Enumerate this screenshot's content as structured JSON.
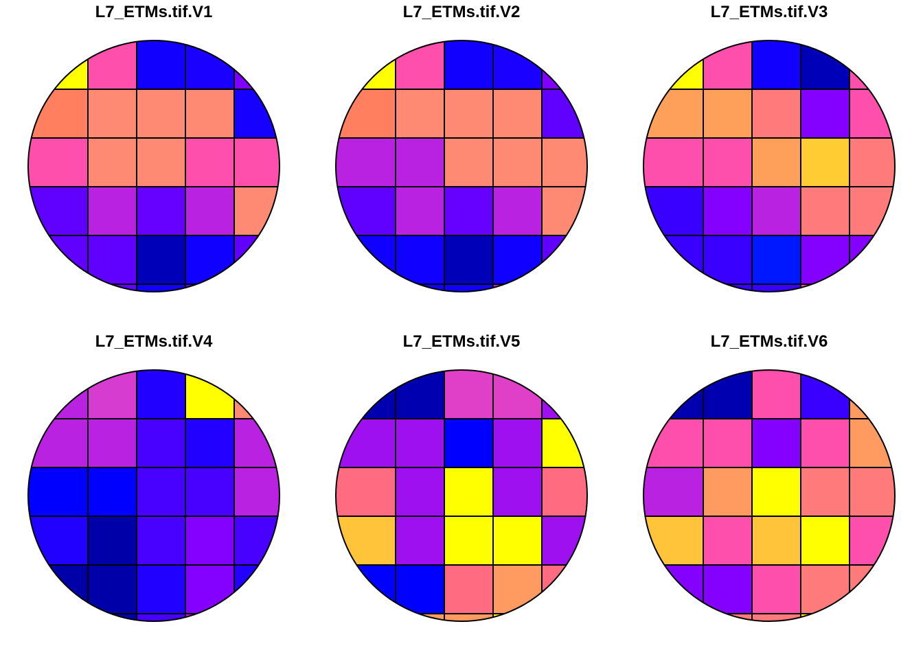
{
  "chart_data": [
    {
      "type": "heatmap",
      "title": "L7_ETMs.tif.V1",
      "grid": [
        [
          "#ffff00",
          "#ff4fad",
          "#1200ff",
          "#1a00ff",
          "#8000ff",
          "#8000ff"
        ],
        [
          "#ff7f5f",
          "#ff8a73",
          "#ff8a73",
          "#ff8a73",
          "#1600ff",
          "#6000ff"
        ],
        [
          "#ff4fad",
          "#ff8a73",
          "#ff8a73",
          "#ff4fad",
          "#ff4fad",
          "#b822e0"
        ],
        [
          "#6000ff",
          "#b822e0",
          "#6600ff",
          "#b822e0",
          "#ff8a73",
          "#ff4fad"
        ],
        [
          "#6000ff",
          "#6000ff",
          "#0000b8",
          "#1000ff",
          "#6000ff",
          "#ff8a73"
        ],
        [
          "#6000ff",
          "#6000ff",
          "#1000ff",
          "#6000ff",
          "#6000ff",
          "#ff8a73"
        ]
      ]
    },
    {
      "type": "heatmap",
      "title": "L7_ETMs.tif.V2",
      "grid": [
        [
          "#ffff00",
          "#ff4fad",
          "#1200ff",
          "#1a00ff",
          "#8000ff",
          "#8000ff"
        ],
        [
          "#ff7f5f",
          "#ff8a73",
          "#ff8a73",
          "#ff8a73",
          "#6000ff",
          "#b822e0"
        ],
        [
          "#b822e0",
          "#b822e0",
          "#ff8a73",
          "#ff8a73",
          "#ff8a73",
          "#6600ff"
        ],
        [
          "#6000ff",
          "#b822e0",
          "#6600ff",
          "#b822e0",
          "#ff8a73",
          "#ff4fad"
        ],
        [
          "#1000ff",
          "#1000ff",
          "#0000b8",
          "#1000ff",
          "#6000ff",
          "#ff4fad"
        ],
        [
          "#1000ff",
          "#1000ff",
          "#1000ff",
          "#b822e0",
          "#6000ff",
          "#ff4fad"
        ]
      ]
    },
    {
      "type": "heatmap",
      "title": "L7_ETMs.tif.V3",
      "grid": [
        [
          "#ffff00",
          "#ff4fad",
          "#1200ff",
          "#0000b8",
          "#ff4fad",
          "#ff4fad"
        ],
        [
          "#ffa05a",
          "#ffa05a",
          "#ff7a7a",
          "#8400ff",
          "#ff4fad",
          "#ff4fad"
        ],
        [
          "#ff4fad",
          "#ff4fad",
          "#ffa05a",
          "#ffcc33",
          "#ff7a7a",
          "#b822e0"
        ],
        [
          "#3a00ff",
          "#8400ff",
          "#b822e0",
          "#ff7a7a",
          "#ff7a7a",
          "#ff7a7a"
        ],
        [
          "#3a00ff",
          "#3a00ff",
          "#0018ff",
          "#8400ff",
          "#8400ff",
          "#ff4fad"
        ],
        [
          "#3a00ff",
          "#3a00ff",
          "#3a00ff",
          "#ff4fad",
          "#8400ff",
          "#ff4fad"
        ]
      ]
    },
    {
      "type": "heatmap",
      "title": "L7_ETMs.tif.V4",
      "grid": [
        [
          "#b822e0",
          "#d63cd0",
          "#2200ff",
          "#ffff00",
          "#ff8a73",
          "#ff8a73"
        ],
        [
          "#b822e0",
          "#b822e0",
          "#4800ff",
          "#2200ff",
          "#b822e0",
          "#ff8a73"
        ],
        [
          "#0000ff",
          "#0000ff",
          "#4800ff",
          "#4800ff",
          "#b822e0",
          "#8400ff"
        ],
        [
          "#2200ff",
          "#0000a8",
          "#4800ff",
          "#8400ff",
          "#4800ff",
          "#4800ff"
        ],
        [
          "#0000a8",
          "#0000a8",
          "#2200ff",
          "#8400ff",
          "#2200ff",
          "#2200ff"
        ],
        [
          "#0000a8",
          "#0000a8",
          "#4800ff",
          "#b822e0",
          "#4800ff",
          "#2200ff"
        ]
      ]
    },
    {
      "type": "heatmap",
      "title": "L7_ETMs.tif.V5",
      "grid": [
        [
          "#0000b0",
          "#0000b0",
          "#e040c8",
          "#e040c8",
          "#9e10f0",
          "#9e10f0"
        ],
        [
          "#9e10f0",
          "#9e10f0",
          "#0000ff",
          "#9e10f0",
          "#ffff00",
          "#ffc43a"
        ],
        [
          "#ff6b80",
          "#9e10f0",
          "#ffff00",
          "#9e10f0",
          "#ff6b80",
          "#ffc43a"
        ],
        [
          "#ffc43a",
          "#9e10f0",
          "#ffff00",
          "#ffff00",
          "#9e10f0",
          "#ff6b80"
        ],
        [
          "#0000ff",
          "#0000ff",
          "#ff6b80",
          "#ff9a60",
          "#ff6b80",
          "#9e10f0"
        ],
        [
          "#0000ff",
          "#ff9a60",
          "#ff9a60",
          "#ffff00",
          "#ff9a60",
          "#9e10f0"
        ]
      ]
    },
    {
      "type": "heatmap",
      "title": "L7_ETMs.tif.V6",
      "grid": [
        [
          "#0000b0",
          "#0000b0",
          "#ff4fad",
          "#3a00ff",
          "#ff9a60",
          "#ff9a60"
        ],
        [
          "#ff4fad",
          "#ff4fad",
          "#8400ff",
          "#ff4fad",
          "#ff9a60",
          "#ff9a60"
        ],
        [
          "#b822e0",
          "#ff9a60",
          "#ffff00",
          "#ff7a7a",
          "#ff7a7a",
          "#ff9a60"
        ],
        [
          "#ffc43a",
          "#ff4fad",
          "#ffc43a",
          "#ffff00",
          "#ff4fad",
          "#ff7a7a"
        ],
        [
          "#8400ff",
          "#8400ff",
          "#ff4fad",
          "#ff7a7a",
          "#ff7a7a",
          "#b822e0"
        ],
        [
          "#8400ff",
          "#ff7a7a",
          "#ff7a7a",
          "#ffff00",
          "#ff9a60",
          "#ff9a60"
        ]
      ]
    }
  ]
}
